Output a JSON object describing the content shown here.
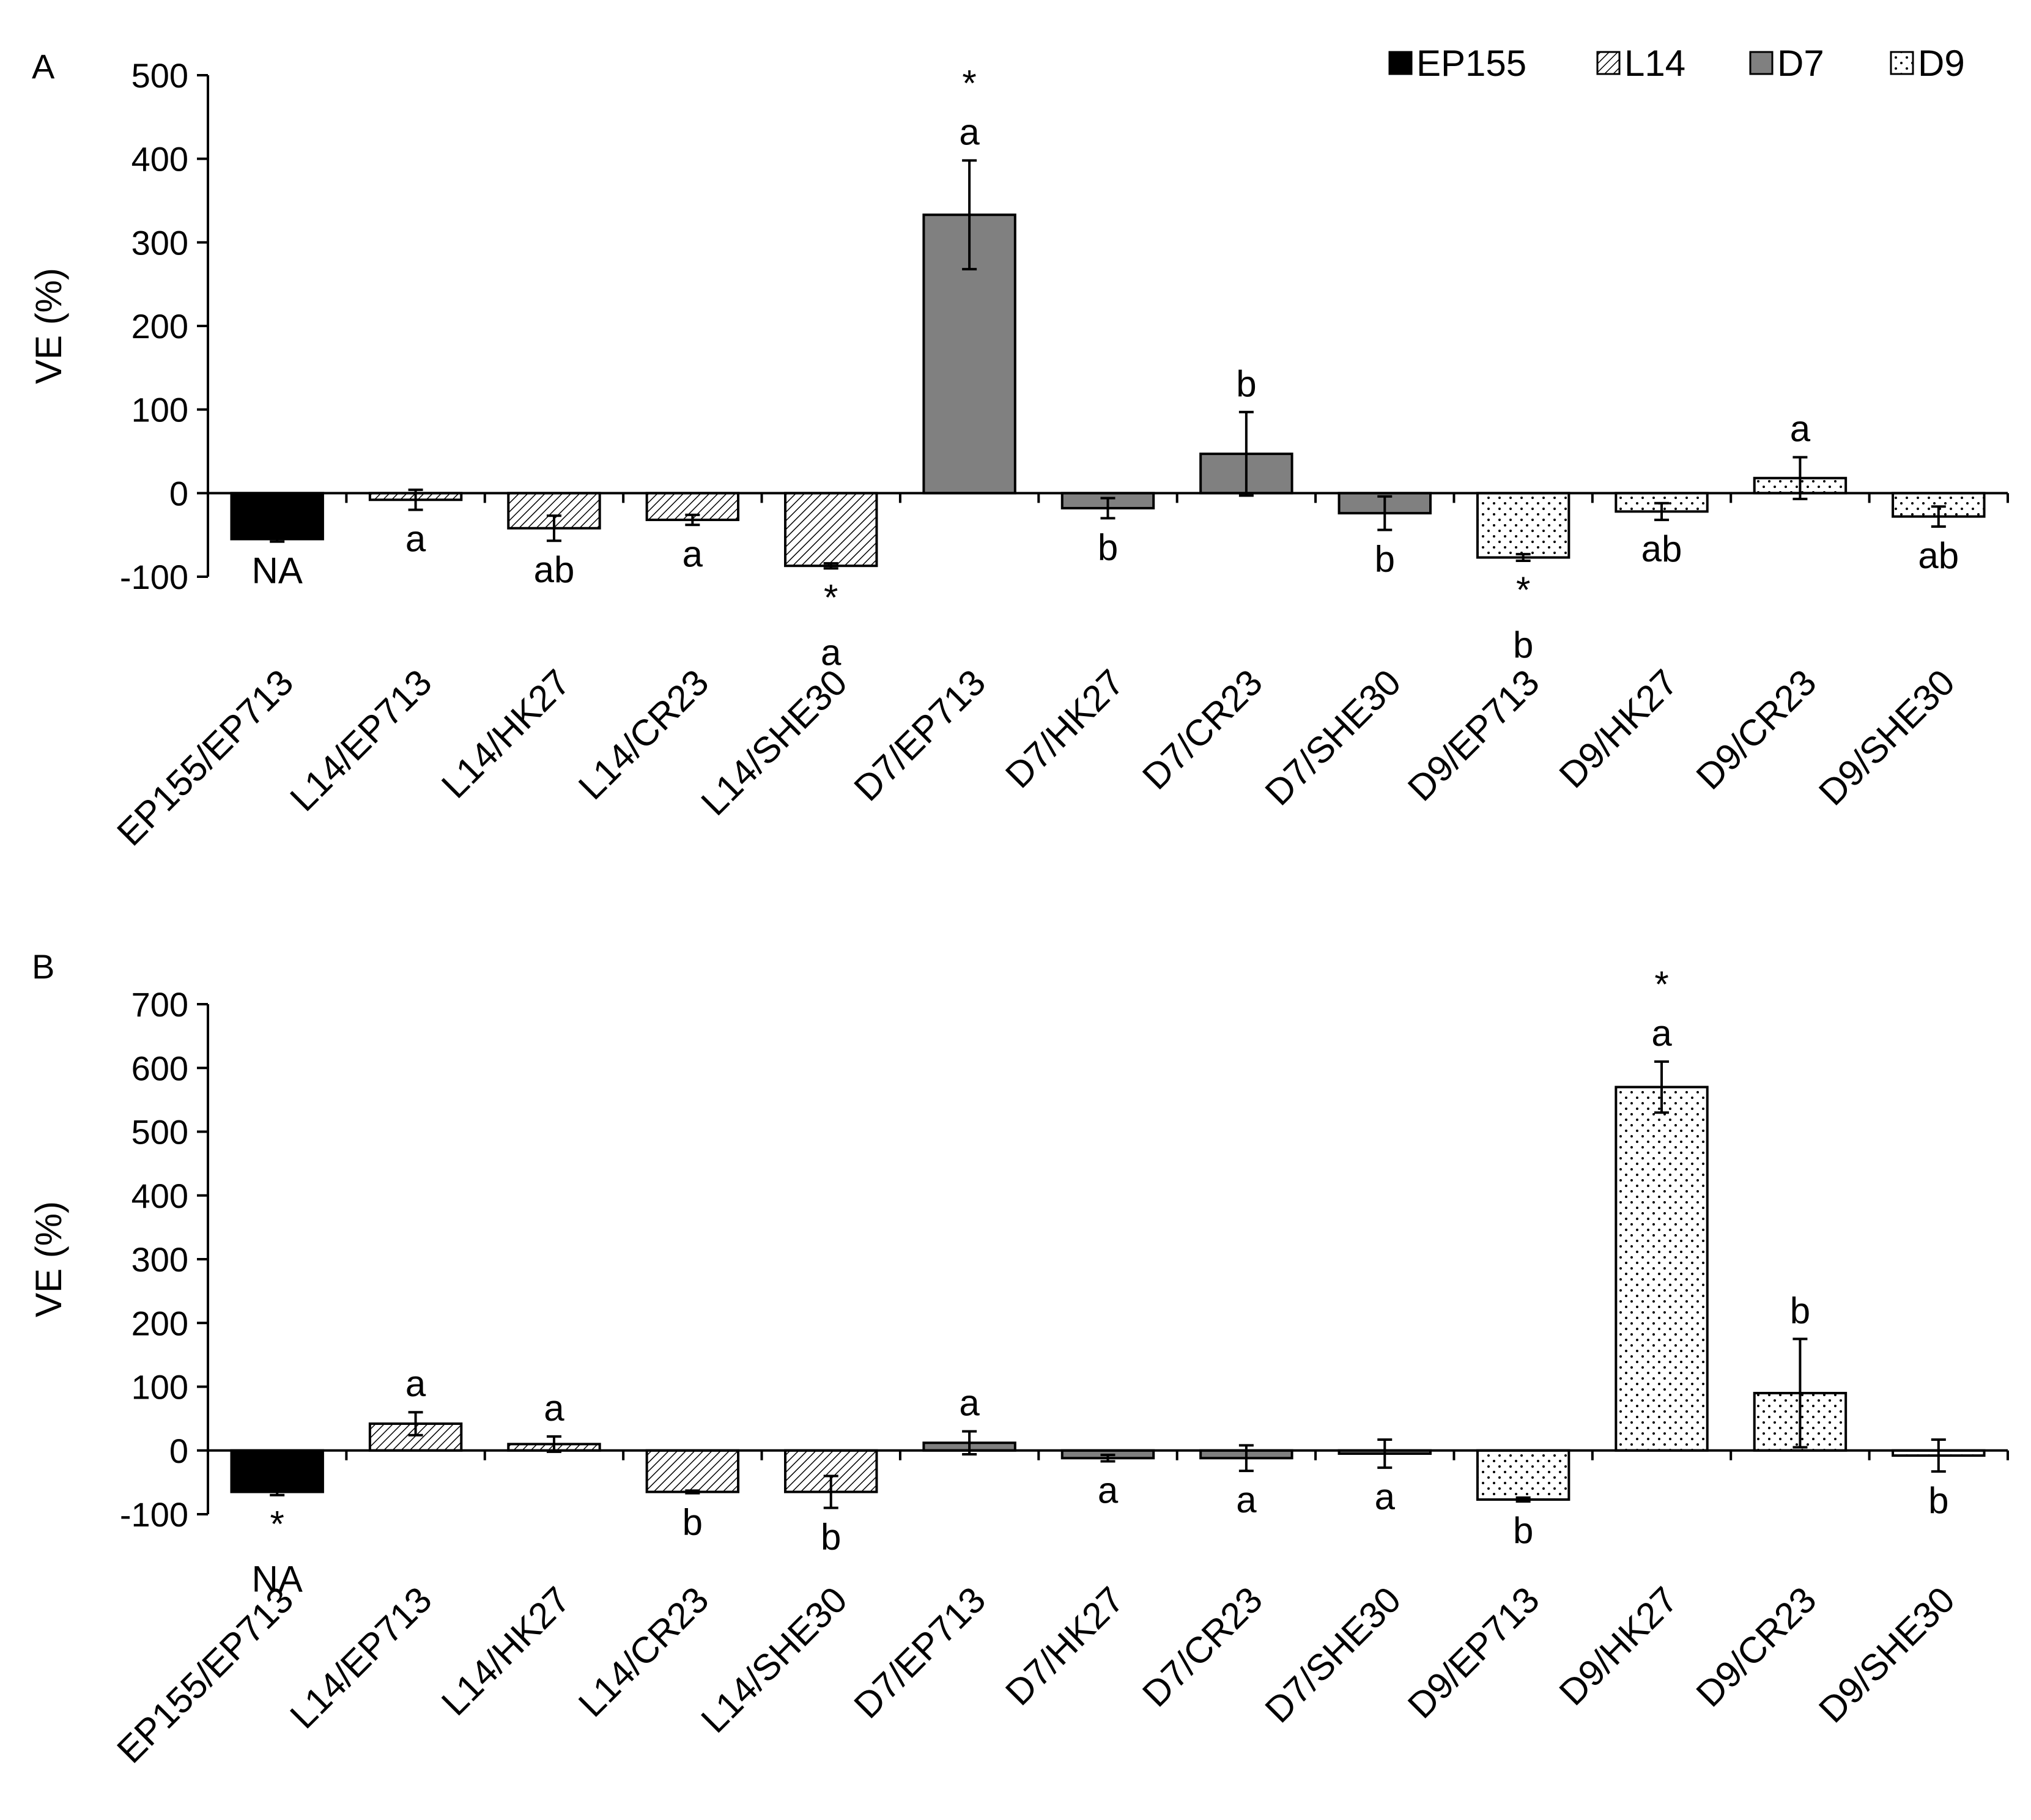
{
  "legend": [
    {
      "name": "EP155",
      "pattern": "solid-black"
    },
    {
      "name": "L14",
      "pattern": "diagonal-hatch"
    },
    {
      "name": "D7",
      "pattern": "solid-gray"
    },
    {
      "name": "D9",
      "pattern": "dots"
    }
  ],
  "chart_data": [
    {
      "type": "bar",
      "panel": "A",
      "title": "",
      "xlabel": "",
      "ylabel": "VE (%)",
      "ylim": [
        -100,
        500
      ],
      "yticks": [
        -100,
        0,
        100,
        200,
        300,
        400,
        500
      ],
      "categories": [
        "EP155/EP713",
        "L14/EP713",
        "L14/HK27",
        "L14/CR23",
        "L14/SHE30",
        "D7/EP713",
        "D7/HK27",
        "D7/CR23",
        "D7/SHE30",
        "D9/EP713",
        "D9/HK27",
        "D9/CR23",
        "D9/SHE30"
      ],
      "series_group": [
        "EP155",
        "L14",
        "L14",
        "L14",
        "L14",
        "D7",
        "D7",
        "D7",
        "D7",
        "D9",
        "D9",
        "D9",
        "D9"
      ],
      "values": [
        -55,
        -8,
        -42,
        -32,
        -87,
        333,
        -18,
        47,
        -24,
        -77,
        -22,
        18,
        -28
      ],
      "errors": [
        3,
        12,
        15,
        6,
        3,
        65,
        12,
        50,
        20,
        4,
        10,
        25,
        12
      ],
      "letters": [
        "NA",
        "a",
        "ab",
        "a",
        "a",
        "a",
        "b",
        "b",
        "b",
        "b",
        "ab",
        "a",
        "ab"
      ],
      "stars": [
        false,
        false,
        false,
        false,
        true,
        true,
        false,
        false,
        false,
        true,
        false,
        false,
        false
      ]
    },
    {
      "type": "bar",
      "panel": "B",
      "title": "",
      "xlabel": "",
      "ylabel": "VE (%)",
      "ylim": [
        -100,
        700
      ],
      "yticks": [
        -100,
        0,
        100,
        200,
        300,
        400,
        500,
        600,
        700
      ],
      "categories": [
        "EP155/EP713",
        "L14/EP713",
        "L14/HK27",
        "L14/CR23",
        "L14/SHE30",
        "D7/EP713",
        "D7/HK27",
        "D7/CR23",
        "D7/SHE30",
        "D9/EP713",
        "D9/HK27",
        "D9/CR23",
        "D9/SHE30"
      ],
      "series_group": [
        "EP155",
        "L14",
        "L14",
        "L14",
        "L14",
        "D7",
        "D7",
        "D7",
        "D7",
        "D9",
        "D9",
        "D9",
        "D9"
      ],
      "values": [
        -65,
        42,
        10,
        -65,
        -65,
        12,
        -12,
        -12,
        -5,
        -77,
        570,
        90,
        -8
      ],
      "errors": [
        5,
        18,
        12,
        2,
        25,
        18,
        5,
        20,
        22,
        3,
        40,
        85,
        25
      ],
      "letters": [
        "NA",
        "a",
        "a",
        "b",
        "b",
        "a",
        "a",
        "a",
        "a",
        "b",
        "a",
        "b",
        "b"
      ],
      "stars": [
        true,
        false,
        false,
        false,
        false,
        false,
        false,
        false,
        false,
        false,
        true,
        false,
        false
      ]
    }
  ]
}
